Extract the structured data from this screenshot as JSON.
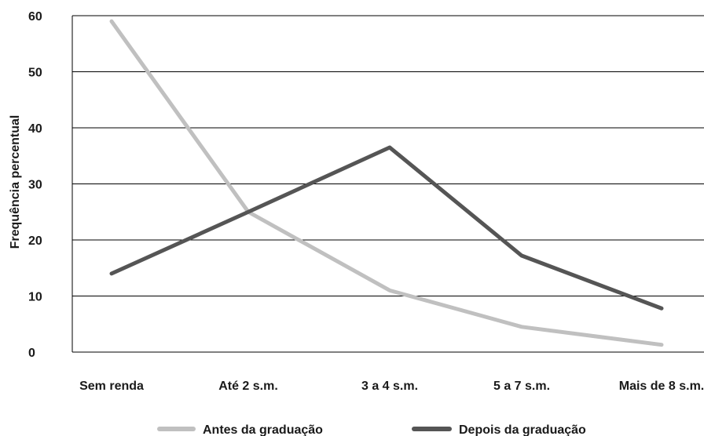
{
  "chart_data": {
    "type": "line",
    "title": "",
    "xlabel": "",
    "ylabel": "Frequência percentual",
    "categories": [
      "Sem renda",
      "Até 2 s.m.",
      "3 a 4 s.m.",
      "5 a 7 s.m.",
      "Mais de 8 s.m."
    ],
    "ylim": [
      0,
      60
    ],
    "yticks": [
      "60",
      "50",
      "40",
      "30",
      "20",
      "10",
      "0"
    ],
    "grid": true,
    "legend_position": "bottom",
    "series": [
      {
        "name": "Antes da graduação",
        "values": [
          59,
          25,
          11,
          4.5,
          1.3
        ],
        "color": "#c0c0c0"
      },
      {
        "name": "Depois da graduação",
        "values": [
          14,
          25,
          36.5,
          17.2,
          7.8
        ],
        "color": "#555555"
      }
    ]
  }
}
